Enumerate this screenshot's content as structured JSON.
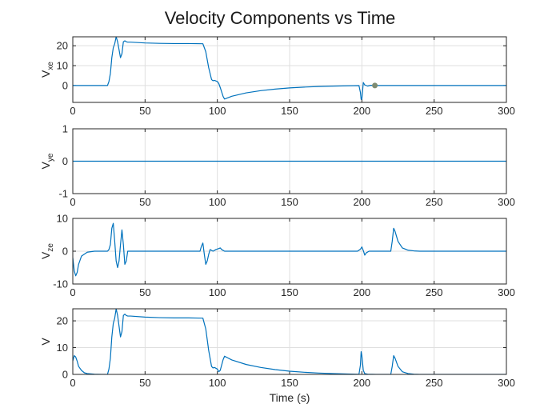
{
  "figure": {
    "title": "Velocity Components vs Time",
    "xlabel": "Time (s)",
    "line_color": "#0072BD",
    "marker_color": "#7f8c72"
  },
  "chart_data": [
    {
      "type": "line",
      "ylabel_main": "V",
      "ylabel_sub": "xe",
      "xlim": [
        0,
        300
      ],
      "ylim": [
        -8.5,
        24.5
      ],
      "xticks": [
        0,
        50,
        100,
        150,
        200,
        250,
        300
      ],
      "yticks": [
        0,
        10,
        20
      ],
      "grid": true,
      "series": [
        {
          "x": [
            0,
            24,
            25,
            26,
            27,
            28,
            29,
            30,
            31,
            32,
            33,
            34,
            35,
            36,
            37,
            38,
            40,
            50,
            60,
            70,
            80,
            90,
            92,
            94,
            96,
            97,
            98,
            100,
            101,
            102,
            104,
            105,
            110,
            120,
            130,
            140,
            150,
            160,
            170,
            180,
            190,
            198,
            199,
            199.5,
            200,
            201,
            202,
            204,
            206,
            209,
            300
          ],
          "y": [
            0,
            0,
            2,
            6,
            14,
            19,
            21,
            24.5,
            22,
            18,
            14,
            16,
            22,
            22.5,
            22,
            21.8,
            21.8,
            21.4,
            21.2,
            21.1,
            21.1,
            21.0,
            17,
            9,
            3,
            2.4,
            2.6,
            2.0,
            1.0,
            -1.0,
            -5.5,
            -6.8,
            -5.4,
            -3.7,
            -2.6,
            -1.8,
            -1.2,
            -0.8,
            -0.5,
            -0.3,
            -0.15,
            -0.05,
            -3.5,
            -7.0,
            -6.8,
            1.5,
            0.3,
            -0.3,
            0.1,
            0,
            0
          ]
        }
      ],
      "markers": [
        {
          "x": 209,
          "y": 0
        }
      ]
    },
    {
      "type": "line",
      "ylabel_main": "V",
      "ylabel_sub": "ye",
      "xlim": [
        0,
        300
      ],
      "ylim": [
        -1,
        1
      ],
      "xticks": [
        0,
        50,
        100,
        150,
        200,
        250,
        300
      ],
      "yticks": [
        -1,
        0,
        1
      ],
      "grid": true,
      "series": [
        {
          "x": [
            0,
            300
          ],
          "y": [
            0,
            0
          ]
        }
      ]
    },
    {
      "type": "line",
      "ylabel_main": "V",
      "ylabel_sub": "ze",
      "xlim": [
        0,
        300
      ],
      "ylim": [
        -10,
        10
      ],
      "xticks": [
        0,
        50,
        100,
        150,
        200,
        250,
        300
      ],
      "yticks": [
        -10,
        0,
        10
      ],
      "grid": true,
      "series": [
        {
          "x": [
            0,
            1,
            2,
            3,
            4,
            6,
            10,
            15,
            20,
            24,
            25,
            26,
            27,
            28,
            29,
            30,
            31,
            32,
            33,
            34,
            35,
            36,
            37,
            38,
            40,
            50,
            60,
            70,
            80,
            88,
            89,
            90,
            91,
            92,
            93,
            94,
            95,
            97,
            99,
            101,
            102,
            103,
            105,
            110,
            130,
            150,
            170,
            190,
            197,
            199,
            200,
            201,
            202,
            203,
            205,
            210,
            215,
            220,
            221,
            222,
            223,
            225,
            228,
            232,
            236,
            240,
            260,
            300
          ],
          "y": [
            -2,
            -6,
            -7.5,
            -6.5,
            -4,
            -1.5,
            -0.3,
            0,
            0,
            0,
            0.5,
            2,
            7,
            8.5,
            3,
            -3,
            -5,
            -3,
            2,
            6.5,
            2,
            -4,
            -3,
            0,
            0,
            0,
            0,
            0,
            0,
            0,
            1.5,
            2.5,
            -1,
            -4,
            -3,
            -1,
            0.5,
            0,
            0.5,
            0.8,
            1.0,
            0.5,
            0,
            0,
            0,
            0,
            0,
            0,
            0,
            0.6,
            1.3,
            0.2,
            -1.2,
            -0.5,
            0,
            0,
            0,
            0,
            3,
            7,
            6,
            3,
            1,
            0.3,
            0.1,
            0,
            0,
            0
          ]
        }
      ]
    },
    {
      "type": "line",
      "ylabel_main": "V",
      "ylabel_sub": "",
      "xlim": [
        0,
        300
      ],
      "ylim": [
        0,
        24.5
      ],
      "xticks": [
        0,
        50,
        100,
        150,
        200,
        250,
        300
      ],
      "yticks": [
        0,
        10,
        20
      ],
      "grid": true,
      "series": [
        {
          "x": [
            0,
            1,
            2,
            3,
            4,
            6,
            8,
            10,
            15,
            20,
            24,
            25,
            26,
            27,
            28,
            29,
            30,
            31,
            32,
            33,
            34,
            35,
            36,
            37,
            38,
            40,
            50,
            60,
            70,
            80,
            90,
            92,
            94,
            96,
            97,
            98,
            100,
            101,
            102,
            104,
            105,
            110,
            120,
            130,
            140,
            150,
            160,
            170,
            180,
            190,
            198,
            199,
            199.5,
            200,
            201,
            202,
            204,
            210,
            220,
            221,
            222,
            223,
            225,
            228,
            232,
            236,
            240,
            300
          ],
          "y": [
            5,
            7,
            6.5,
            5,
            3,
            1.5,
            0.6,
            0.3,
            0.1,
            0,
            0,
            2,
            6,
            14,
            19,
            21,
            24.5,
            22,
            18,
            14,
            16,
            22,
            22.5,
            22,
            21.8,
            21.8,
            21.4,
            21.2,
            21.1,
            21.1,
            21.0,
            17,
            9,
            3,
            2.4,
            2.6,
            2.0,
            1.0,
            1.5,
            5.5,
            6.8,
            5.4,
            3.7,
            2.6,
            1.8,
            1.2,
            0.8,
            0.5,
            0.3,
            0.15,
            0.05,
            3.5,
            8.5,
            7.0,
            1.5,
            0.3,
            0.1,
            0,
            0,
            3,
            7,
            6,
            3,
            1,
            0.3,
            0.1,
            0,
            0
          ]
        }
      ]
    }
  ]
}
